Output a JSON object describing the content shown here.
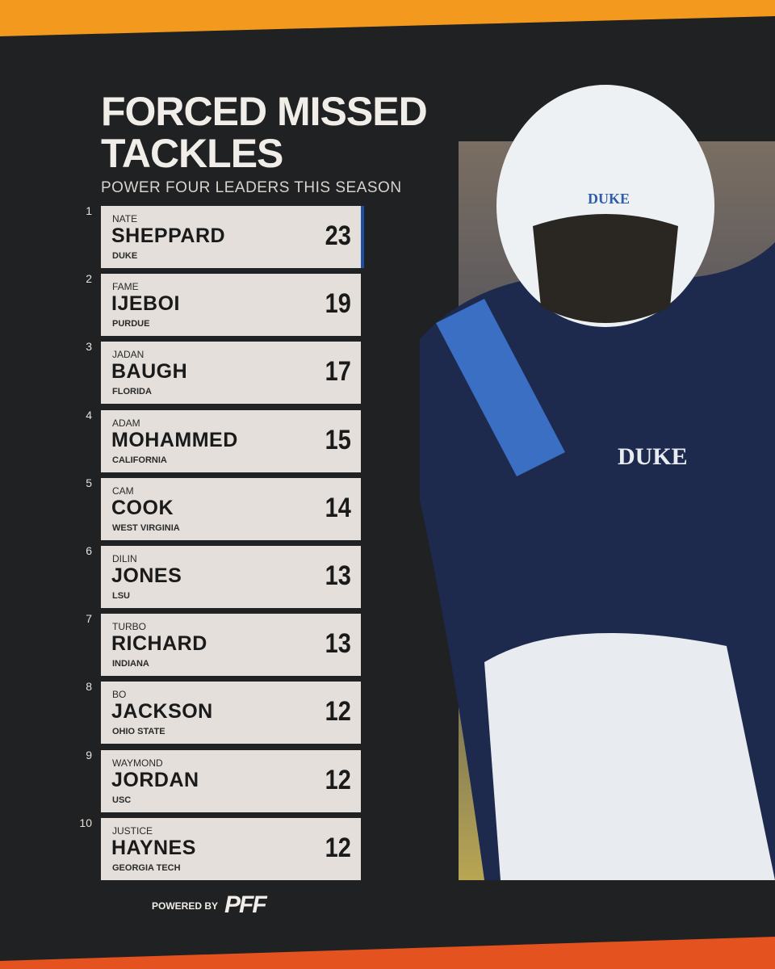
{
  "header": {
    "title": "FORCED MISSED TACKLES",
    "subtitle": "POWER FOUR LEADERS THIS SEASON"
  },
  "rows": [
    {
      "rank": "1",
      "first": "NATE",
      "last": "SHEPPARD",
      "school": "DUKE",
      "value": "23"
    },
    {
      "rank": "2",
      "first": "FAME",
      "last": "IJEBOI",
      "school": "PURDUE",
      "value": "19"
    },
    {
      "rank": "3",
      "first": "JADAN",
      "last": "BAUGH",
      "school": "FLORIDA",
      "value": "17"
    },
    {
      "rank": "4",
      "first": "ADAM",
      "last": "MOHAMMED",
      "school": "CALIFORNIA",
      "value": "15"
    },
    {
      "rank": "5",
      "first": "CAM",
      "last": "COOK",
      "school": "WEST VIRGINIA",
      "value": "14"
    },
    {
      "rank": "6",
      "first": "DILIN",
      "last": "JONES",
      "school": "LSU",
      "value": "13"
    },
    {
      "rank": "7",
      "first": "TURBO",
      "last": "RICHARD",
      "school": "INDIANA",
      "value": "13"
    },
    {
      "rank": "8",
      "first": "BO",
      "last": "JACKSON",
      "school": "OHIO STATE",
      "value": "12"
    },
    {
      "rank": "9",
      "first": "WAYMOND",
      "last": "JORDAN",
      "school": "USC",
      "value": "12"
    },
    {
      "rank": "10",
      "first": "JUSTICE",
      "last": "HAYNES",
      "school": "GEORGIA TECH",
      "value": "12"
    }
  ],
  "footer": {
    "powered": "POWERED BY",
    "brand": "PFF"
  }
}
